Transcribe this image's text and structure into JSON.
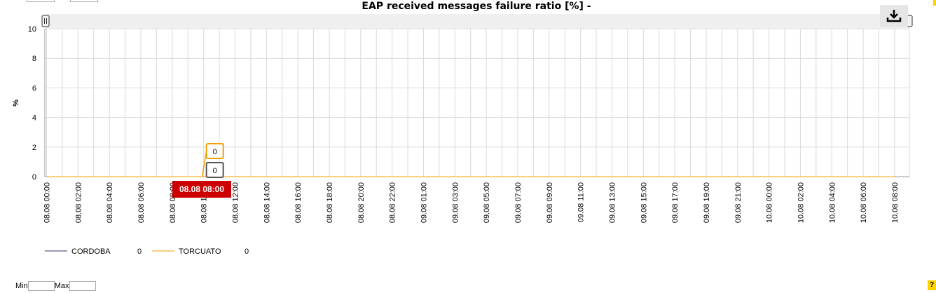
{
  "chart_data": {
    "type": "line",
    "title": "EAP received messages failure ratio [%] -",
    "ylabel": "%",
    "xlabel": "",
    "ylim": [
      0,
      10
    ],
    "yticks": [
      "0",
      "2",
      "4",
      "6",
      "8",
      "10"
    ],
    "x": [
      "08.08 00:00",
      "08.08 02:00",
      "08.08 04:00",
      "08.08 06:00",
      "08.08 08:00",
      "08.08 10:00",
      "08.08 12:00",
      "08.08 14:00",
      "08.08 16:00",
      "08.08 18:00",
      "08.08 20:00",
      "08.08 22:00",
      "09.08 01:00",
      "09.08 03:00",
      "09.08 05:00",
      "09.08 07:00",
      "09.08 09:00",
      "09.08 11:00",
      "09.08 13:00",
      "09.08 15:00",
      "09.08 17:00",
      "09.08 19:00",
      "09.08 21:00",
      "10.08 00:00",
      "10.08 02:00",
      "10.08 04:00",
      "10.08 06:00",
      "10.08 08:00"
    ],
    "series": [
      {
        "name": "CORDOBA",
        "color": "#333366",
        "legend_value": "0",
        "values": [
          0,
          0,
          0,
          0,
          0,
          0,
          0,
          0,
          0,
          0,
          0,
          0,
          0,
          0,
          0,
          0,
          0,
          0,
          0,
          0,
          0,
          0,
          0,
          0,
          0,
          0,
          0,
          0
        ]
      },
      {
        "name": "TORCUATO",
        "color": "#f0a000",
        "legend_value": "0",
        "values": [
          0,
          0,
          0,
          0,
          0,
          0,
          0,
          0,
          0,
          0,
          0,
          0,
          0,
          0,
          0,
          0,
          0,
          0,
          0,
          0,
          0,
          0,
          0,
          0,
          0,
          0,
          0,
          0
        ]
      }
    ],
    "annotations": [
      {
        "series": "TORCUATO",
        "text": "0",
        "color": "#f0a000"
      },
      {
        "series": "CORDOBA",
        "text": "0",
        "color": "#555555"
      }
    ],
    "tooltip": "08.08 08:00",
    "grid": true,
    "legend_position": "bottom-left"
  },
  "controls": {
    "download_icon": "download-icon",
    "min_label": "Min",
    "max_label": "Max",
    "min_value": "",
    "max_value": "",
    "help_label": "?"
  }
}
